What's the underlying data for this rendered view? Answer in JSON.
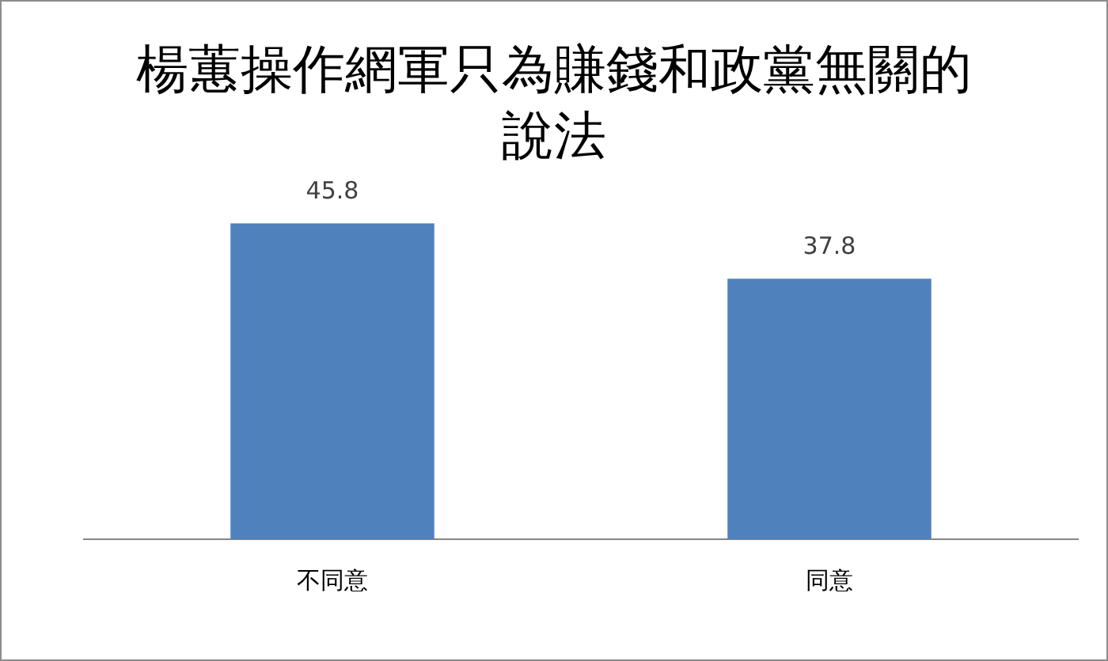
{
  "chart_data": {
    "type": "bar",
    "title": "楊蕙操作網軍只為賺錢和政黨無關的說法",
    "categories": [
      "不同意",
      "同意"
    ],
    "values": [
      45.8,
      37.8
    ],
    "color": "#4f81bd",
    "data_labels": true,
    "grid": false,
    "legend": false
  }
}
